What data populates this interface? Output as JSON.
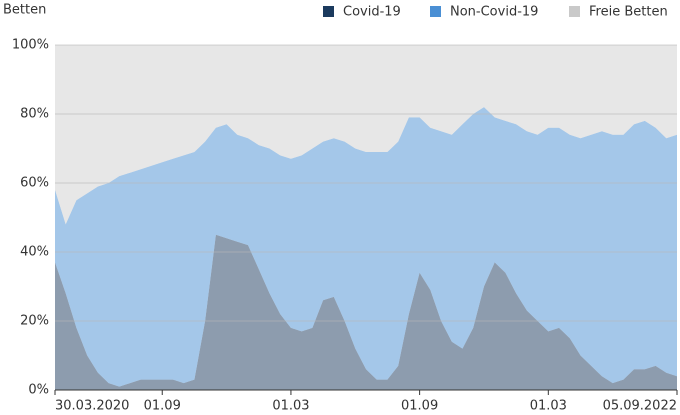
{
  "chart_data": {
    "type": "stacked-area",
    "y_label": "Betten",
    "categories": [
      "30.03.2020",
      null,
      null,
      null,
      null,
      null,
      null,
      null,
      null,
      null,
      "01.09",
      null,
      null,
      null,
      null,
      null,
      null,
      null,
      null,
      null,
      null,
      null,
      "01.03",
      null,
      null,
      null,
      null,
      null,
      null,
      null,
      null,
      null,
      null,
      null,
      "01.09",
      null,
      null,
      null,
      null,
      null,
      null,
      null,
      null,
      null,
      null,
      null,
      "01.03",
      null,
      null,
      null,
      null,
      null,
      null,
      null,
      null,
      null,
      null,
      null,
      "05.09.2022"
    ],
    "series": [
      {
        "name": "Covid-19",
        "color": "#1b3a5e",
        "values": [
          37,
          28,
          18,
          10,
          5,
          2,
          1,
          2,
          3,
          3,
          3,
          3,
          2,
          3,
          20,
          45,
          44,
          43,
          42,
          35,
          28,
          22,
          18,
          17,
          18,
          26,
          27,
          20,
          12,
          6,
          3,
          3,
          7,
          22,
          34,
          29,
          20,
          14,
          12,
          18,
          30,
          37,
          34,
          28,
          23,
          20,
          17,
          18,
          15,
          10,
          7,
          4,
          2,
          3,
          6,
          6,
          7,
          5,
          4
        ]
      },
      {
        "name": "Non-Covid-19",
        "color": "#4a8fd4",
        "values": [
          21,
          20,
          37,
          47,
          54,
          58,
          61,
          61,
          61,
          62,
          63,
          64,
          66,
          66,
          52,
          31,
          33,
          31,
          31,
          36,
          42,
          46,
          49,
          51,
          52,
          46,
          46,
          52,
          58,
          63,
          66,
          66,
          65,
          57,
          45,
          47,
          55,
          60,
          65,
          62,
          52,
          42,
          44,
          49,
          52,
          54,
          59,
          58,
          59,
          63,
          67,
          71,
          72,
          71,
          71,
          72,
          69,
          68,
          70
        ]
      },
      {
        "name": "Freie Betten",
        "color": "#c9c9c9",
        "values": [
          42,
          52,
          45,
          43,
          41,
          40,
          38,
          37,
          36,
          35,
          34,
          33,
          32,
          31,
          28,
          24,
          23,
          26,
          27,
          29,
          30,
          32,
          33,
          32,
          30,
          28,
          27,
          28,
          30,
          31,
          31,
          31,
          28,
          21,
          21,
          24,
          25,
          26,
          23,
          20,
          18,
          21,
          22,
          23,
          25,
          26,
          24,
          24,
          26,
          27,
          26,
          25,
          26,
          26,
          23,
          22,
          24,
          27,
          26
        ]
      }
    ],
    "ylim": [
      0,
      100
    ],
    "yticks": [
      {
        "value": 0,
        "label": "0%"
      },
      {
        "value": 20,
        "label": "20%"
      },
      {
        "value": 40,
        "label": "40%"
      },
      {
        "value": 60,
        "label": "60%"
      },
      {
        "value": 80,
        "label": "80%"
      },
      {
        "value": 100,
        "label": "100%"
      }
    ],
    "grid": true
  }
}
